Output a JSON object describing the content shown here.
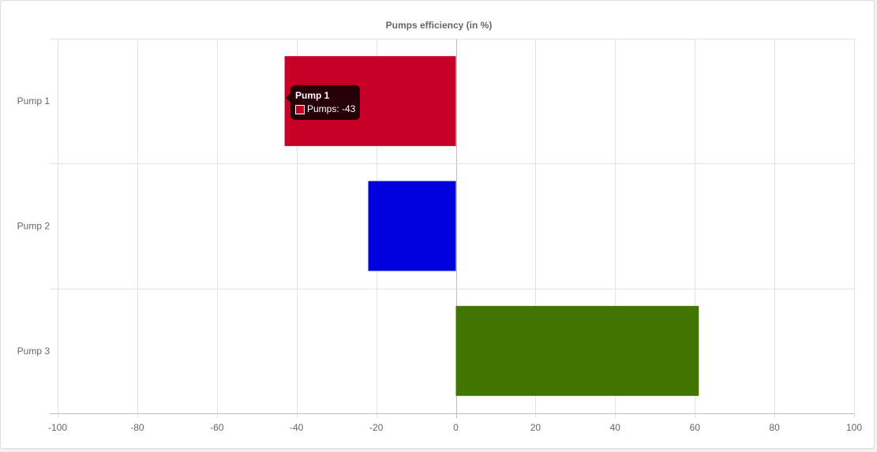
{
  "chart_data": {
    "type": "bar",
    "orientation": "horizontal",
    "title": "Pumps efficiency (in %)",
    "categories": [
      "Pump 1",
      "Pump 2",
      "Pump 3"
    ],
    "series": [
      {
        "name": "Pumps",
        "values": [
          -43,
          -22,
          61
        ],
        "colors": [
          "#c80027",
          "#0000de",
          "#407600"
        ]
      }
    ],
    "xlim": [
      -100,
      100
    ],
    "x_ticks": [
      "-100",
      "-80",
      "-60",
      "-40",
      "-20",
      "0",
      "20",
      "40",
      "60",
      "80",
      "100"
    ],
    "grid": true,
    "legend": "none"
  },
  "tooltip": {
    "title": "Pump 1",
    "label": "Pumps: -43",
    "swatch_color": "#c80027"
  }
}
